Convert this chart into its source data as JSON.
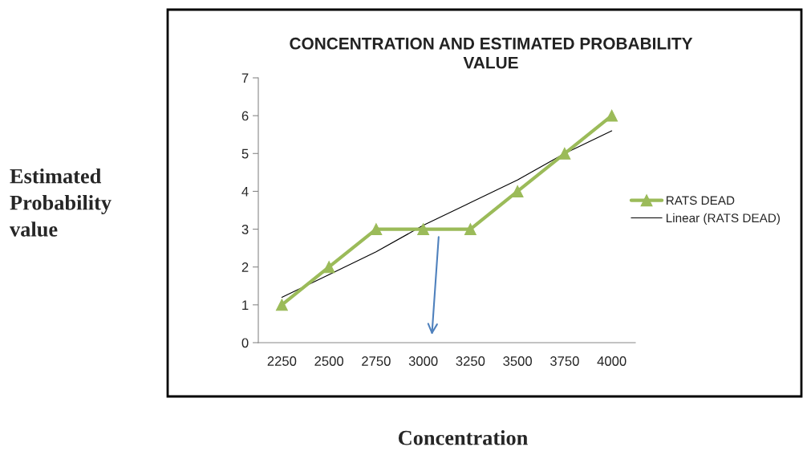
{
  "chart_data": {
    "type": "line",
    "title": "CONCENTRATION AND ESTIMATED PROBABILITY\nVALUE",
    "xlabel": "Concentration",
    "annotations": [
      "Estimated\nProbability\nvalue"
    ],
    "categories": [
      "2250",
      "2500",
      "2750",
      "3000",
      "3250",
      "3500",
      "3750",
      "4000"
    ],
    "series": [
      {
        "name": "RATS DEAD",
        "color": "#9bbb59",
        "values": [
          1,
          2,
          3,
          3,
          3,
          4,
          5,
          6
        ],
        "marker": "triangle"
      },
      {
        "name": "Linear (RATS DEAD)",
        "color": "#000000",
        "values": [
          1.2,
          1.8,
          2.4,
          3.1,
          3.7,
          4.3,
          5.0,
          5.6
        ],
        "marker": "none"
      }
    ],
    "ylim": [
      0,
      7
    ],
    "yticks": [
      0,
      1,
      2,
      3,
      4,
      5,
      6,
      7
    ],
    "grid": false,
    "legend": "right"
  }
}
